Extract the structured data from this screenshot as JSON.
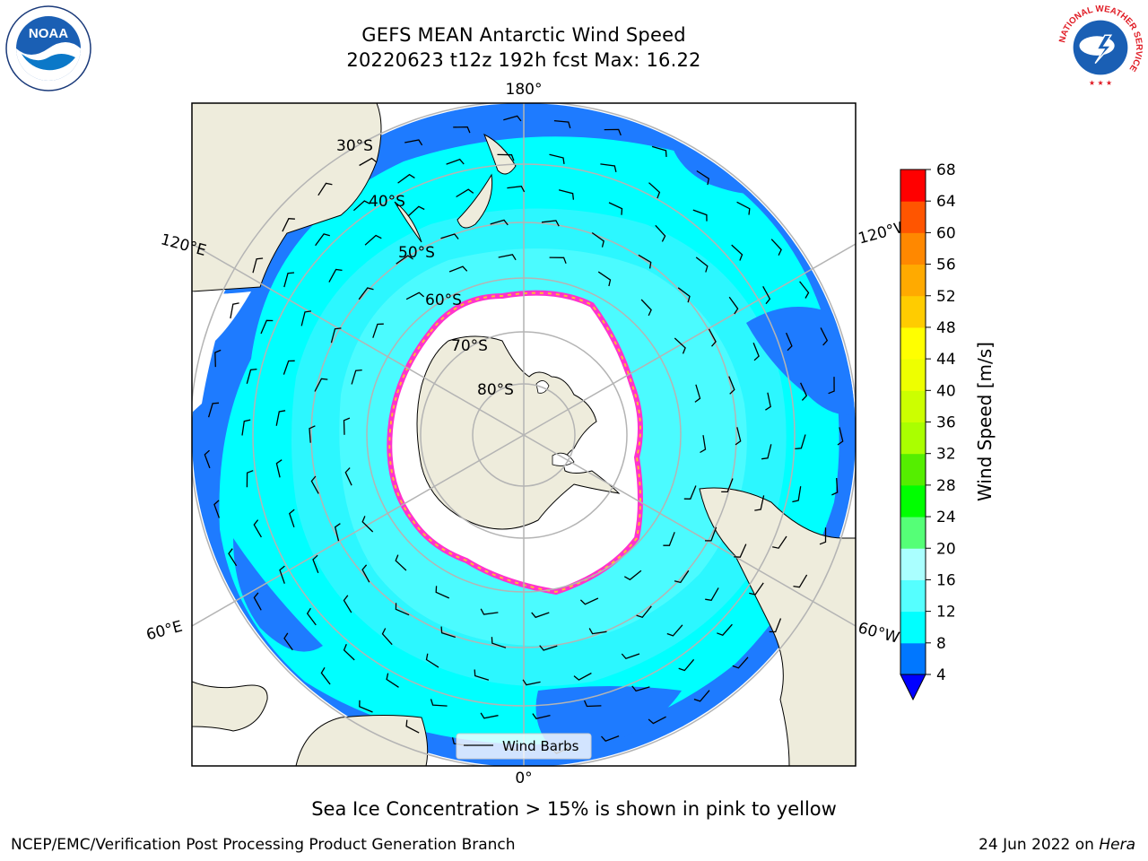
{
  "header": {
    "title": "GEFS MEAN Antarctic Wind Speed",
    "subtitle": "20220623 t12z 192h fcst   Max: 16.22"
  },
  "map": {
    "projection": "south-polar-stereographic",
    "longitude_labels": [
      "180°",
      "120°E",
      "120°W",
      "60°E",
      "60°W",
      "0°"
    ],
    "latitude_labels": [
      "30°S",
      "40°S",
      "50°S",
      "60°S",
      "70°S",
      "80°S"
    ],
    "legend": {
      "label": "Wind Barbs"
    },
    "colors": {
      "land": "#eeecdc",
      "sea_ice_white": "#ffffff",
      "ice_edge": [
        "#ff33cc",
        "#ff9933",
        "#ffcc00"
      ],
      "graticule": "#b4b4b4"
    }
  },
  "colorbar": {
    "label": "Wind Speed [m/s]",
    "ticks": [
      "4",
      "8",
      "12",
      "16",
      "20",
      "24",
      "28",
      "32",
      "36",
      "40",
      "44",
      "48",
      "52",
      "56",
      "60",
      "64",
      "68"
    ],
    "colors": [
      "#0077ff",
      "#00ffff",
      "#55ffff",
      "#aaffff",
      "#55ff77",
      "#00ff00",
      "#55ee00",
      "#aaff00",
      "#ccff00",
      "#eeff00",
      "#ffff00",
      "#ffcc00",
      "#ffaa00",
      "#ff8800",
      "#ff5500",
      "#ff0000"
    ],
    "under_color": "#0000ff"
  },
  "footer": {
    "note": "Sea Ice Concentration > 15% is shown in pink to yellow",
    "credit_left": "NCEP/EMC/Verification Post Processing Product Generation Branch",
    "credit_date": "24 Jun 2022 on",
    "credit_host": "Hera"
  },
  "logos": {
    "noaa": "NOAA",
    "nws": "NATIONAL WEATHER SERVICE"
  }
}
